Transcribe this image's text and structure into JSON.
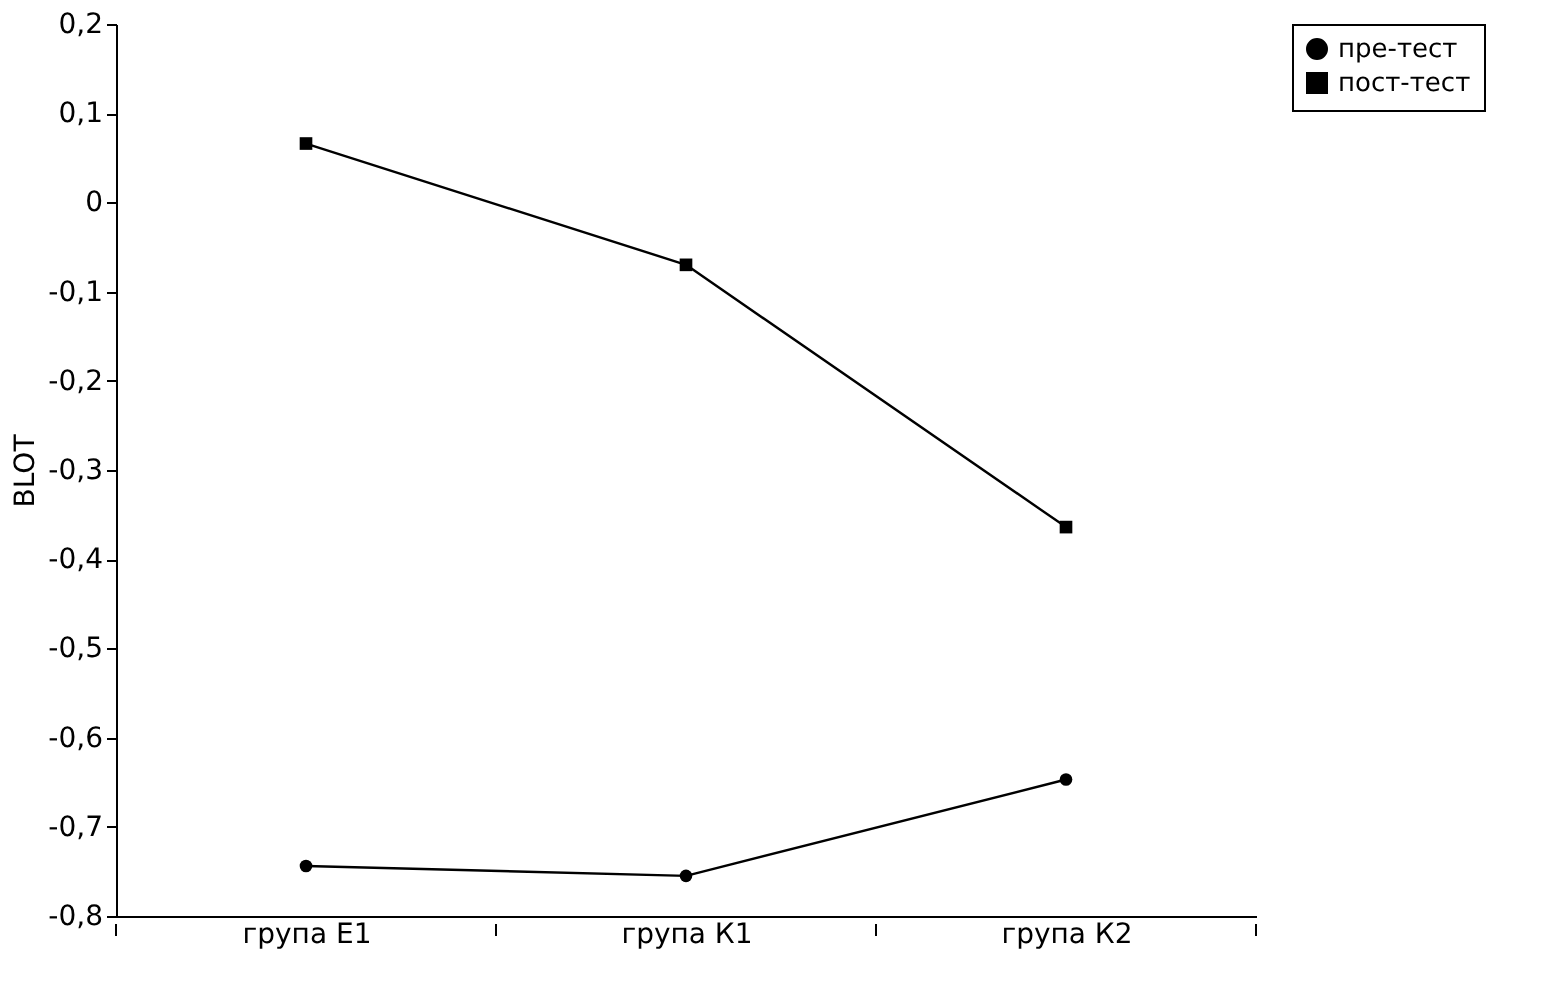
{
  "chart_data": {
    "type": "line",
    "ylabel": "BLOT",
    "categories": [
      "група Е1",
      "група К1",
      "група К2"
    ],
    "series": [
      {
        "name": "пре-тест",
        "color": "#000000",
        "marker": "circle",
        "values": [
          -0.744,
          -0.755,
          -0.647
        ]
      },
      {
        "name": "пост-тест",
        "color": "#000000",
        "marker": "square",
        "values": [
          0.066,
          -0.07,
          -0.364
        ]
      }
    ],
    "ylim": [
      -0.8,
      0.2
    ],
    "yticks": [
      {
        "value": 0.2,
        "label": "0,2"
      },
      {
        "value": 0.1,
        "label": "0,1"
      },
      0,
      {
        "value": -0.1,
        "label": "-0,1"
      },
      {
        "value": -0.2,
        "label": "-0,2"
      },
      {
        "value": -0.3,
        "label": "-0,3"
      },
      {
        "value": -0.4,
        "label": "-0,4"
      },
      {
        "value": -0.5,
        "label": "-0,5"
      },
      {
        "value": -0.6,
        "label": "-0,6"
      },
      {
        "value": -0.7,
        "label": "-0,7"
      },
      {
        "value": -0.8,
        "label": "-0,8"
      }
    ],
    "grid": false,
    "legend": "right",
    "line_style": "solid"
  }
}
